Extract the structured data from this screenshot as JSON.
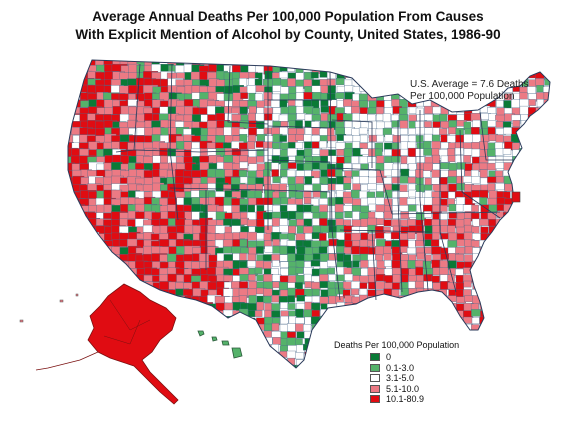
{
  "title_line1": "Average Annual Deaths Per 100,000 Population From Causes",
  "title_line2": "With Explicit Mention of Alcohol by County, United States, 1986-90",
  "us_average_line1": "U.S. Average = 7.6 Deaths",
  "us_average_line2": "Per 100,000 Population",
  "legend": {
    "title": "Deaths Per 100,000 Population",
    "items": [
      {
        "label": "0",
        "color": "#0a7a36"
      },
      {
        "label": "0.1-3.0",
        "color": "#55b26a"
      },
      {
        "label": "3.1-5.0",
        "color": "#ffffff"
      },
      {
        "label": "5.1-10.0",
        "color": "#ec7a84"
      },
      {
        "label": "10.1-80.9",
        "color": "#e00c12"
      }
    ]
  },
  "colors": {
    "county_border": "#4a6a8a",
    "state_border": "#2a3a5a"
  },
  "regions": [
    {
      "name": "west-coast",
      "dominant": "10.1-80.9"
    },
    {
      "name": "mountain-west",
      "dominant": "5.1-10.0"
    },
    {
      "name": "great-plains",
      "dominant": "0.1-3.0"
    },
    {
      "name": "midwest",
      "dominant": "3.1-5.0"
    },
    {
      "name": "southeast",
      "dominant": "5.1-10.0"
    },
    {
      "name": "northeast",
      "dominant": "5.1-10.0"
    },
    {
      "name": "alaska",
      "dominant": "10.1-80.9"
    },
    {
      "name": "hawaii",
      "dominant": "0.1-3.0"
    }
  ]
}
